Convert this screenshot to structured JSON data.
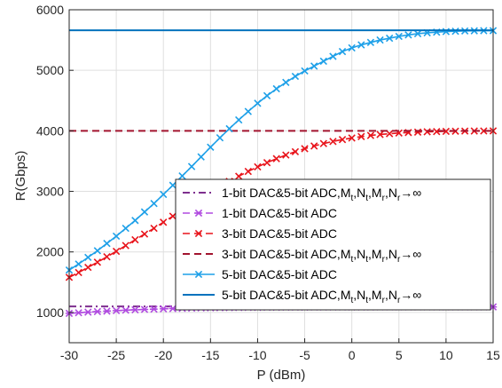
{
  "chart_data": {
    "type": "line",
    "title": "",
    "xlabel": "P (dBm)",
    "ylabel": "R(Gbps)",
    "xlim": [
      -30,
      15
    ],
    "ylim": [
      500,
      6000
    ],
    "xticks": [
      "-30",
      "-25",
      "-20",
      "-15",
      "-10",
      "-5",
      "0",
      "5",
      "10",
      "15"
    ],
    "yticks": [
      "1000",
      "2000",
      "3000",
      "4000",
      "5000",
      "6000"
    ],
    "grid": true,
    "legend_position": "bottom-right",
    "x": [
      -30,
      -29,
      -28,
      -27,
      -26,
      -25,
      -24,
      -23,
      -22,
      -21,
      -20,
      -19,
      -18,
      -17,
      -16,
      -15,
      -14,
      -13,
      -12,
      -11,
      -10,
      -9,
      -8,
      -7,
      -6,
      -5,
      -4,
      -3,
      -2,
      -1,
      0,
      1,
      2,
      3,
      4,
      5,
      6,
      7,
      8,
      9,
      10,
      11,
      12,
      13,
      14,
      15
    ],
    "series": [
      {
        "name": "1-bit DAC&5-bit ADC,Mt,Nt,Mr,Nr→∞",
        "legend_main": "1-bit DAC&5-bit ADC,M",
        "color": "#7E2F8E",
        "style": "dashdot",
        "marker": "none",
        "values": [
          1100,
          1100,
          1100,
          1100,
          1100,
          1100,
          1100,
          1100,
          1100,
          1100,
          1100,
          1100,
          1100,
          1100,
          1100,
          1100,
          1100,
          1100,
          1100,
          1100,
          1100,
          1100,
          1100,
          1100,
          1100,
          1100,
          1100,
          1100,
          1100,
          1100,
          1100,
          1100,
          1100,
          1100,
          1100,
          1100,
          1100,
          1100,
          1100,
          1100,
          1100,
          1100,
          1100,
          1100,
          1100,
          1100
        ]
      },
      {
        "name": "1-bit DAC&5-bit ADC",
        "legend_main": "1-bit DAC&5-bit ADC",
        "color": "#B04BE0",
        "style": "dashed",
        "marker": "asterisk",
        "values": [
          985,
          995,
          1005,
          1014,
          1022,
          1030,
          1037,
          1044,
          1050,
          1055,
          1060,
          1064,
          1068,
          1071,
          1074,
          1076,
          1078,
          1080,
          1082,
          1083,
          1084,
          1085,
          1086,
          1087,
          1088,
          1088,
          1089,
          1089,
          1090,
          1090,
          1090,
          1090,
          1090,
          1091,
          1091,
          1091,
          1091,
          1091,
          1091,
          1091,
          1091,
          1091,
          1091,
          1091,
          1091,
          1091
        ]
      },
      {
        "name": "3-bit DAC&5-bit ADC",
        "legend_main": "3-bit DAC&5-bit ADC",
        "color": "#E8141B",
        "style": "dashed",
        "marker": "x",
        "values": [
          1580,
          1660,
          1745,
          1830,
          1920,
          2010,
          2105,
          2200,
          2295,
          2390,
          2490,
          2590,
          2690,
          2790,
          2885,
          2980,
          3075,
          3165,
          3250,
          3330,
          3405,
          3475,
          3540,
          3600,
          3655,
          3705,
          3750,
          3790,
          3825,
          3856,
          3882,
          3905,
          3924,
          3940,
          3953,
          3964,
          3972,
          3979,
          3984,
          3988,
          3991,
          3994,
          3996,
          3997,
          3998,
          3999
        ]
      },
      {
        "name": "3-bit DAC&5-bit ADC,Mt,Nt,Mr,Nr→∞",
        "legend_main": "3-bit DAC&5-bit ADC,M",
        "color": "#A2142F",
        "style": "dashed",
        "marker": "none",
        "values": [
          4000,
          4000,
          4000,
          4000,
          4000,
          4000,
          4000,
          4000,
          4000,
          4000,
          4000,
          4000,
          4000,
          4000,
          4000,
          4000,
          4000,
          4000,
          4000,
          4000,
          4000,
          4000,
          4000,
          4000,
          4000,
          4000,
          4000,
          4000,
          4000,
          4000,
          4000,
          4000,
          4000,
          4000,
          4000,
          4000,
          4000,
          4000,
          4000,
          4000,
          4000,
          4000,
          4000,
          4000,
          4000,
          4000
        ]
      },
      {
        "name": "5-bit DAC&5-bit ADC",
        "legend_main": "5-bit DAC&5-bit ADC",
        "color": "#1EA0E8",
        "style": "solid",
        "marker": "x",
        "values": [
          1700,
          1800,
          1910,
          2020,
          2140,
          2260,
          2390,
          2520,
          2660,
          2800,
          2950,
          3100,
          3255,
          3410,
          3570,
          3730,
          3885,
          4035,
          4180,
          4320,
          4455,
          4580,
          4695,
          4800,
          4900,
          4990,
          5070,
          5150,
          5230,
          5310,
          5370,
          5420,
          5460,
          5500,
          5530,
          5560,
          5585,
          5605,
          5620,
          5630,
          5640,
          5645,
          5650,
          5652,
          5654,
          5655
        ]
      },
      {
        "name": "5-bit DAC&5-bit ADC,Mt,Nt,Mr,Nr→∞",
        "legend_main": "5-bit DAC&5-bit ADC,M",
        "color": "#0072BD",
        "style": "solid",
        "marker": "none",
        "values": [
          5660,
          5660,
          5660,
          5660,
          5660,
          5660,
          5660,
          5660,
          5660,
          5660,
          5660,
          5660,
          5660,
          5660,
          5660,
          5660,
          5660,
          5660,
          5660,
          5660,
          5660,
          5660,
          5660,
          5660,
          5660,
          5660,
          5660,
          5660,
          5660,
          5660,
          5660,
          5660,
          5660,
          5660,
          5660,
          5660,
          5660,
          5660,
          5660,
          5660,
          5660,
          5660,
          5660,
          5660,
          5660,
          5660
        ]
      }
    ]
  }
}
